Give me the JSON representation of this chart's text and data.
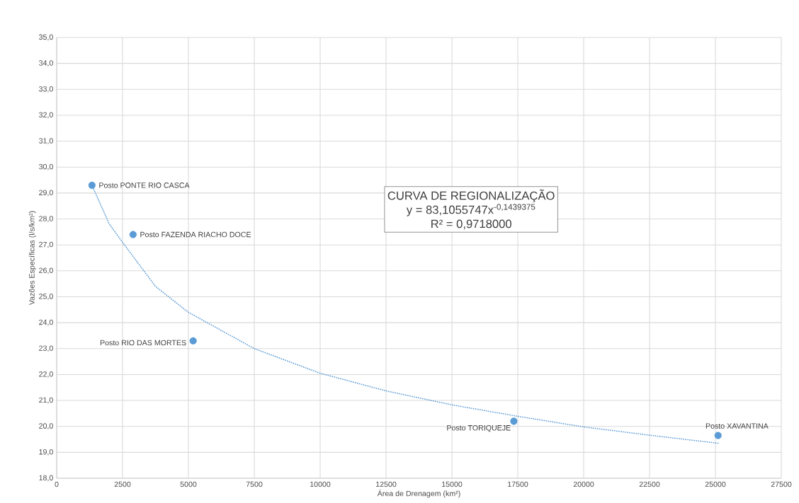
{
  "chart_data": {
    "type": "scatter",
    "xlabel": "Área de Drenagem (km²)",
    "ylabel": "Vazões Específicas (l/s/km²)",
    "xlim": [
      0,
      27500
    ],
    "xticks": [
      0,
      2500,
      5000,
      7500,
      10000,
      12500,
      15000,
      17500,
      20000,
      22500,
      25000,
      27500
    ],
    "ylim": [
      18,
      35
    ],
    "yticks": [
      {
        "value": 18,
        "label": "18,0"
      },
      {
        "value": 19,
        "label": "19,0"
      },
      {
        "value": 20,
        "label": "20,0"
      },
      {
        "value": 21,
        "label": "21,0"
      },
      {
        "value": 22,
        "label": "22,0"
      },
      {
        "value": 23,
        "label": "23,0"
      },
      {
        "value": 24,
        "label": "24,0"
      },
      {
        "value": 25,
        "label": "25,0"
      },
      {
        "value": 26,
        "label": "26,0"
      },
      {
        "value": 27,
        "label": "27,0"
      },
      {
        "value": 28,
        "label": "28,0"
      },
      {
        "value": 29,
        "label": "29,0"
      },
      {
        "value": 30,
        "label": "30,0"
      },
      {
        "value": 31,
        "label": "31,0"
      },
      {
        "value": 32,
        "label": "32,0"
      },
      {
        "value": 33,
        "label": "33,0"
      },
      {
        "value": 34,
        "label": "34,0"
      },
      {
        "value": 35,
        "label": "35,0"
      }
    ],
    "grid": true,
    "marker": "circle",
    "series": [
      {
        "color": "#5b9bd5",
        "x": [
          1340,
          2900,
          5180,
          17350,
          25100
        ],
        "values": [
          29.3,
          27.4,
          23.3,
          20.2,
          19.65
        ]
      },
      {
        "type": "line",
        "color": "#5b9bd5",
        "line_style": "dotted",
        "marker": "none",
        "x": [
          1340,
          2000,
          2500,
          3750,
          5000,
          7500,
          10000,
          12500,
          15000,
          17500,
          20000,
          22500,
          25100
        ],
        "values": [
          29.3,
          27.8,
          27.1,
          25.4,
          24.4,
          23.0,
          22.05,
          21.37,
          20.83,
          20.39,
          19.98,
          19.66,
          19.35
        ]
      }
    ],
    "annotations": [
      {
        "text": "Posto PONTE RIO CASCA",
        "x": 1340,
        "y": 29.3
      },
      {
        "text": "Posto FAZENDA RIACHO DOCE",
        "x": 2900,
        "y": 27.4
      },
      {
        "text": "Posto RIO DAS MORTES",
        "x": 5180,
        "y": 23.3
      },
      {
        "text": "Posto TORIQUEJE",
        "x": 17350,
        "y": 20.2
      },
      {
        "text": "Posto XAVANTINA",
        "x": 25100,
        "y": 19.65
      },
      "CURVA DE REGIONALIZAÇÃO",
      "y = 83,1055747x$^{-0,1439375}$",
      "R² = 0,9718000"
    ]
  }
}
